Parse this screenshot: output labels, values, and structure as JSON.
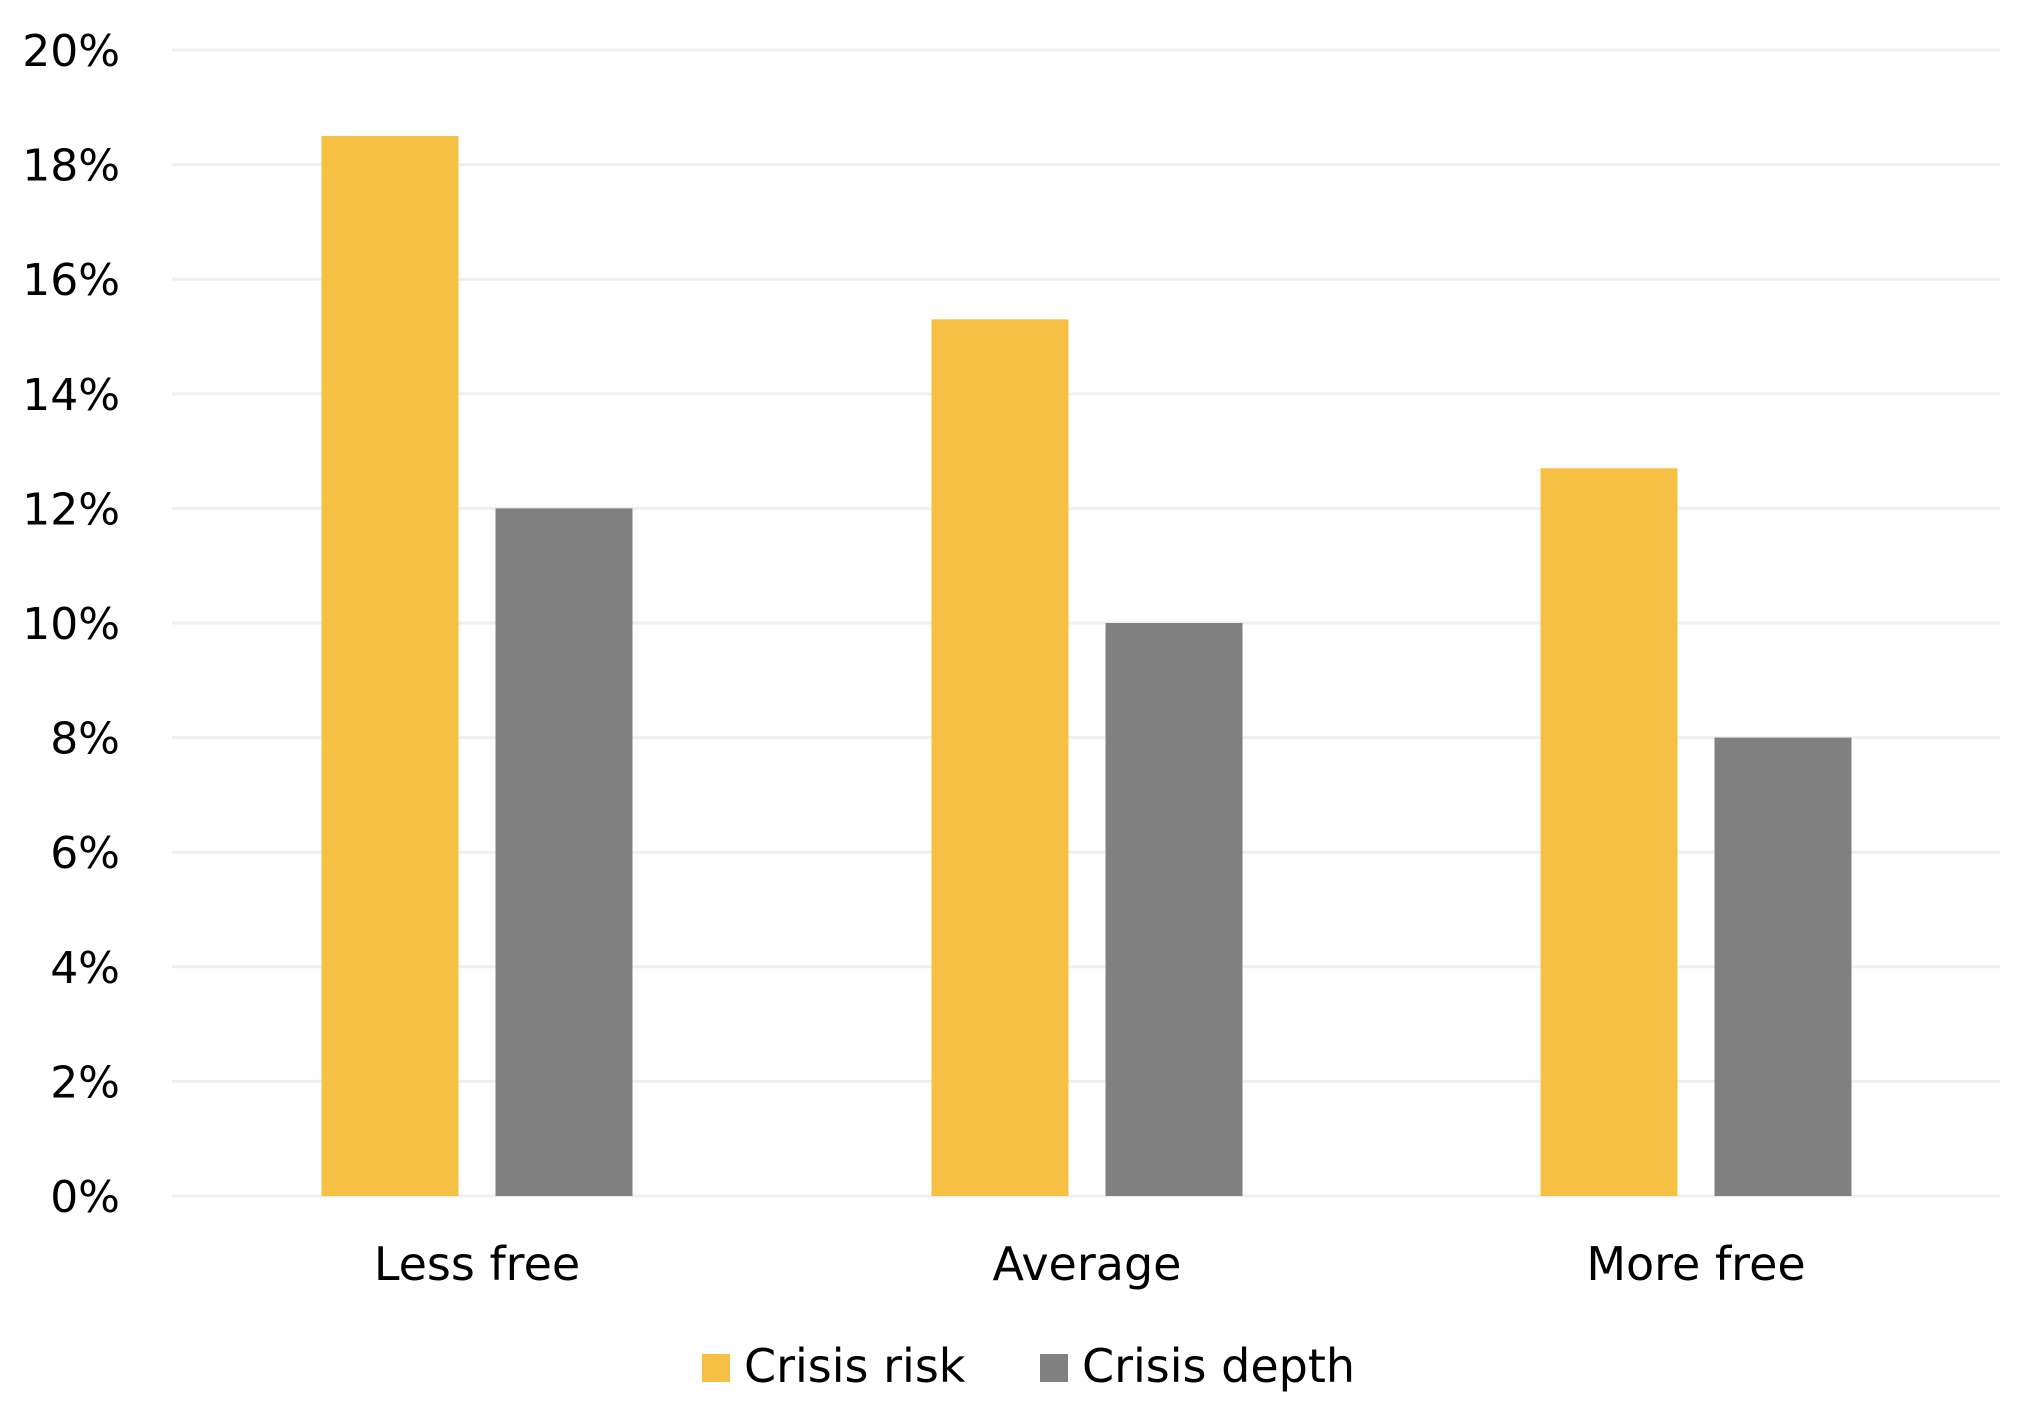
{
  "chart_data": {
    "type": "bar",
    "title": "",
    "xlabel": "",
    "ylabel": "",
    "categories": [
      "Less free",
      "Average",
      "More free"
    ],
    "series": [
      {
        "name": "Crisis risk",
        "values": [
          18.5,
          15.3,
          12.7
        ],
        "color": "#F5C043"
      },
      {
        "name": "Crisis depth",
        "values": [
          12.0,
          10.0,
          8.0
        ],
        "color": "#808080"
      }
    ],
    "ylim": [
      0,
      20
    ],
    "yticks": [
      0,
      2,
      4,
      6,
      8,
      10,
      12,
      14,
      16,
      18,
      20
    ],
    "ytick_labels": [
      "0%",
      "2%",
      "4%",
      "6%",
      "8%",
      "10%",
      "12%",
      "14%",
      "16%",
      "18%",
      "20%"
    ],
    "grid": true,
    "grid_color": "#EFEFEF",
    "legend": {
      "position": "bottom-center",
      "items": [
        {
          "label": "Crisis risk",
          "color": "#F5C043"
        },
        {
          "label": "Crisis depth",
          "color": "#808080"
        }
      ]
    }
  }
}
